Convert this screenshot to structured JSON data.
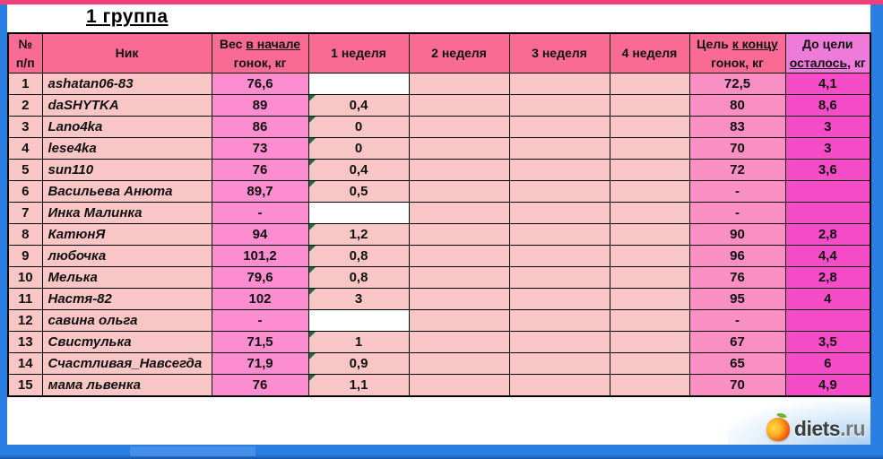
{
  "title": "1 группа",
  "table": {
    "headers": {
      "num_line1": "№",
      "num_line2": "п/п",
      "nick": "Ник",
      "weight_pre": "Вес ",
      "weight_u": "в начале",
      "weight_line2": "гонок, кг",
      "week1": "1 неделя",
      "week2": "2 неделя",
      "week3": "3 неделя",
      "week4": "4 неделя",
      "goal_pre": "Цель ",
      "goal_u": "к концу",
      "goal_line2": "гонок, кг",
      "remain_line1": "До цели",
      "remain_u": "осталось",
      "remain_post": ", кг"
    },
    "rows": [
      {
        "num": "1",
        "nick": "ashatan06-83",
        "start": "76,6",
        "week1": "",
        "week1_white": true,
        "week1_tag": false,
        "goal": "72,5",
        "remain": "4,1"
      },
      {
        "num": "2",
        "nick": "daSHYTKA",
        "start": "89",
        "week1": "0,4",
        "week1_white": false,
        "week1_tag": true,
        "goal": "80",
        "remain": "8,6"
      },
      {
        "num": "3",
        "nick": "Lano4ka",
        "start": "86",
        "week1": "0",
        "week1_white": false,
        "week1_tag": true,
        "goal": "83",
        "remain": "3"
      },
      {
        "num": "4",
        "nick": "lese4ka",
        "start": "73",
        "week1": "0",
        "week1_white": false,
        "week1_tag": true,
        "goal": "70",
        "remain": "3"
      },
      {
        "num": "5",
        "nick": "sun110",
        "start": "76",
        "week1": "0,4",
        "week1_white": false,
        "week1_tag": true,
        "goal": "72",
        "remain": "3,6"
      },
      {
        "num": "6",
        "nick": "Васильева Анюта",
        "start": "89,7",
        "week1": "0,5",
        "week1_white": false,
        "week1_tag": true,
        "goal": "-",
        "remain": ""
      },
      {
        "num": "7",
        "nick": "Инка Малинка",
        "start": "-",
        "week1": "",
        "week1_white": true,
        "week1_tag": false,
        "goal": "-",
        "remain": ""
      },
      {
        "num": "8",
        "nick": "КатюнЯ",
        "start": "94",
        "week1": "1,2",
        "week1_white": false,
        "week1_tag": true,
        "goal": "90",
        "remain": "2,8"
      },
      {
        "num": "9",
        "nick": "любочка",
        "start": "101,2",
        "week1": "0,8",
        "week1_white": false,
        "week1_tag": true,
        "goal": "96",
        "remain": "4,4"
      },
      {
        "num": "10",
        "nick": "Мелька",
        "start": "79,6",
        "week1": "0,8",
        "week1_white": false,
        "week1_tag": true,
        "goal": "76",
        "remain": "2,8"
      },
      {
        "num": "11",
        "nick": "Настя-82",
        "start": "102",
        "week1": "3",
        "week1_white": false,
        "week1_tag": true,
        "goal": "95",
        "remain": "4"
      },
      {
        "num": "12",
        "nick": "савина ольга",
        "start": "-",
        "week1": "",
        "week1_white": true,
        "week1_tag": false,
        "goal": "-",
        "remain": ""
      },
      {
        "num": "13",
        "nick": "Свистулька",
        "start": "71,5",
        "week1": "1",
        "week1_white": false,
        "week1_tag": true,
        "goal": "67",
        "remain": "3,5"
      },
      {
        "num": "14",
        "nick": "Счастливая_Навсегда",
        "start": "71,9",
        "week1": "0,9",
        "week1_white": false,
        "week1_tag": true,
        "goal": "65",
        "remain": "6"
      },
      {
        "num": "15",
        "nick": "мама львенка",
        "start": "76",
        "week1": "1,1",
        "week1_white": false,
        "week1_tag": true,
        "goal": "70",
        "remain": "4,9"
      }
    ]
  },
  "logo": {
    "name": "diets",
    "tld": ".ru"
  },
  "colors": {
    "top_strip_pink": "#f23f77",
    "frame_blue": "#2b7ee2",
    "header_pink": "#f96b94",
    "remain_header_pink": "#ee7ad9",
    "cell_light_pink": "#f9c6c6",
    "cell_weight_pink": "#fb8dd0",
    "cell_goal_pink": "#f98fc2",
    "cell_remain_magenta": "#f64cc8",
    "comment_triangle_green": "#1d7044"
  }
}
